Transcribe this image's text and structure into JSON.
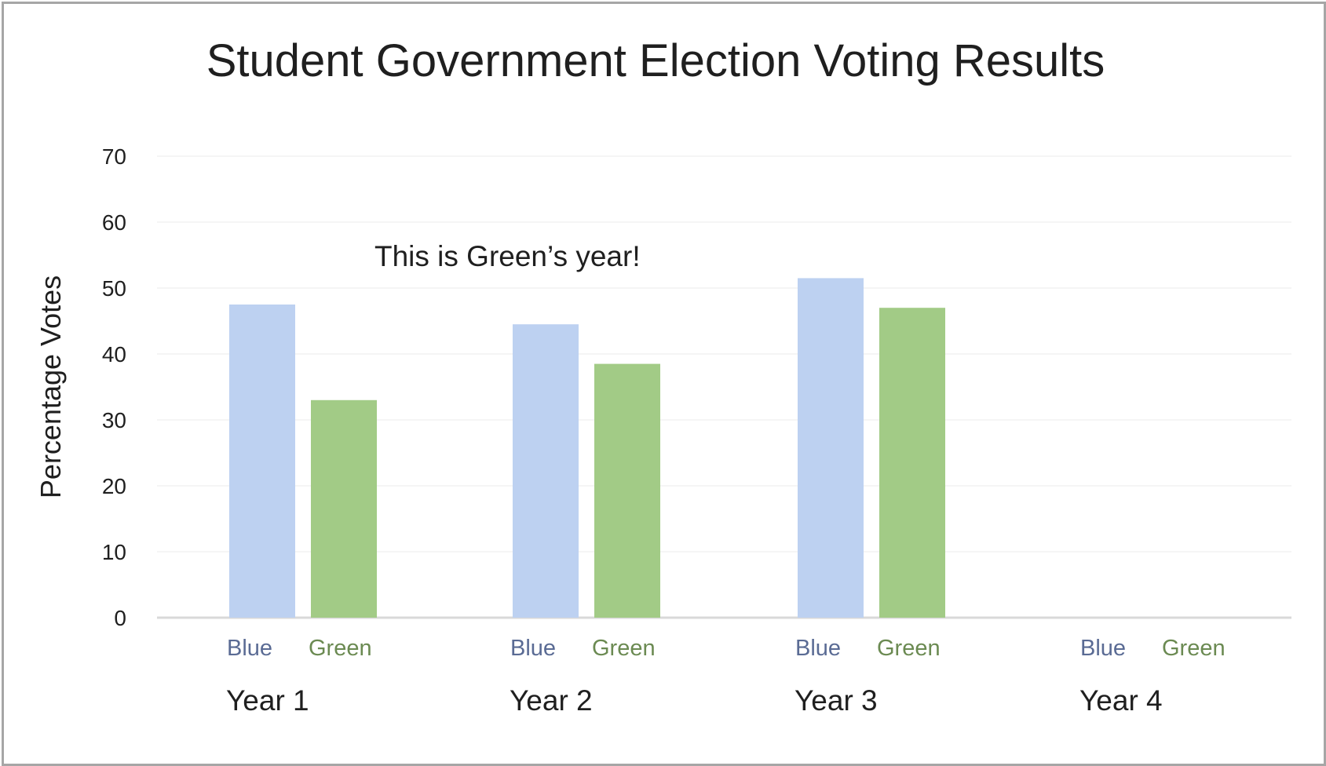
{
  "chart_data": {
    "type": "bar",
    "title": "Student Government Election Voting Results",
    "ylabel": "Percentage Votes",
    "xlabel": "",
    "ylim": [
      0,
      70
    ],
    "yticks": [
      "0",
      "10",
      "20",
      "30",
      "40",
      "50",
      "60",
      "70"
    ],
    "grid": true,
    "categories": [
      "Year 1",
      "Year 2",
      "Year 3",
      "Year 4"
    ],
    "series": [
      {
        "name": "Blue",
        "color": "#bdd1f1",
        "label_color": "#5a6b94",
        "values": [
          47.5,
          44.5,
          51.5,
          null
        ]
      },
      {
        "name": "Green",
        "color": "#a2cb86",
        "label_color": "#6b8a52",
        "values": [
          33,
          38.5,
          47,
          null
        ]
      }
    ],
    "annotations": [
      {
        "text": "This is Green’s year!"
      }
    ],
    "colors": {
      "grid": "#f2f2f2",
      "axis": "#d9d9d9",
      "frame": "#a6a6a6"
    }
  }
}
